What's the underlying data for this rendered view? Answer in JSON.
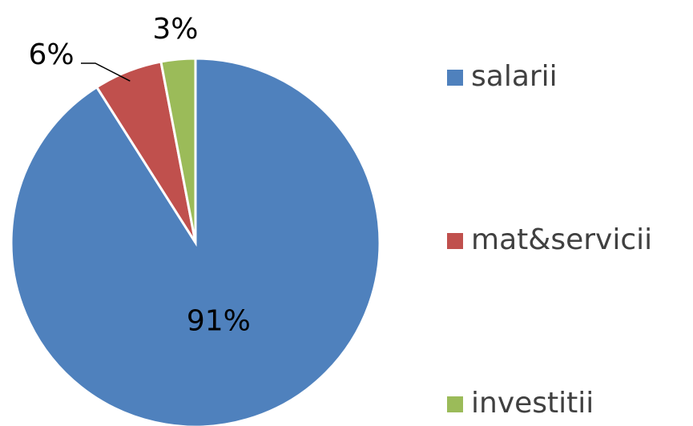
{
  "chart_data": {
    "type": "pie",
    "categories": [
      "salarii",
      "mat&servicii",
      "investitii"
    ],
    "values": [
      91,
      6,
      3
    ],
    "value_labels": [
      "91%",
      "6%",
      "3%"
    ],
    "colors": [
      "#4f81bd",
      "#c0504d",
      "#9bbb59"
    ],
    "legend": "right"
  }
}
